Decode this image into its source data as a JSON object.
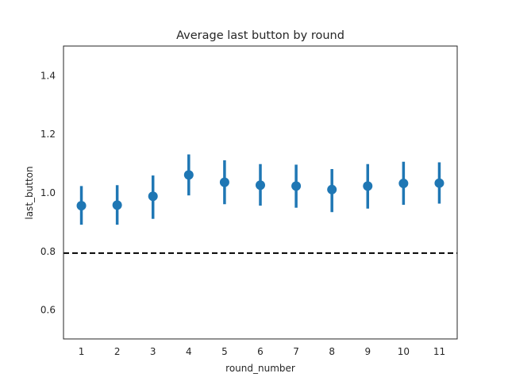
{
  "chart_data": {
    "type": "scatter",
    "title": "Average last button by round",
    "xlabel": "round_number",
    "ylabel": "last_button",
    "categories": [
      "1",
      "2",
      "3",
      "4",
      "5",
      "6",
      "7",
      "8",
      "9",
      "10",
      "11"
    ],
    "ylim": [
      0.5,
      1.5
    ],
    "yticks": [
      "0.6",
      "0.8",
      "1.0",
      "1.2",
      "1.4"
    ],
    "grid": false,
    "series": [
      {
        "values": [
          0.955,
          0.957,
          0.987,
          1.06,
          1.035,
          1.025,
          1.022,
          1.01,
          1.022,
          1.031,
          1.032
        ],
        "ci_low": [
          0.89,
          0.89,
          0.91,
          0.99,
          0.96,
          0.955,
          0.948,
          0.933,
          0.945,
          0.958,
          0.962
        ],
        "ci_high": [
          1.022,
          1.025,
          1.058,
          1.13,
          1.11,
          1.097,
          1.095,
          1.08,
          1.097,
          1.105,
          1.103
        ],
        "color": "#1f77b4"
      }
    ],
    "reference_line": {
      "value": 0.793,
      "style": "dashed",
      "color": "#000000"
    }
  }
}
